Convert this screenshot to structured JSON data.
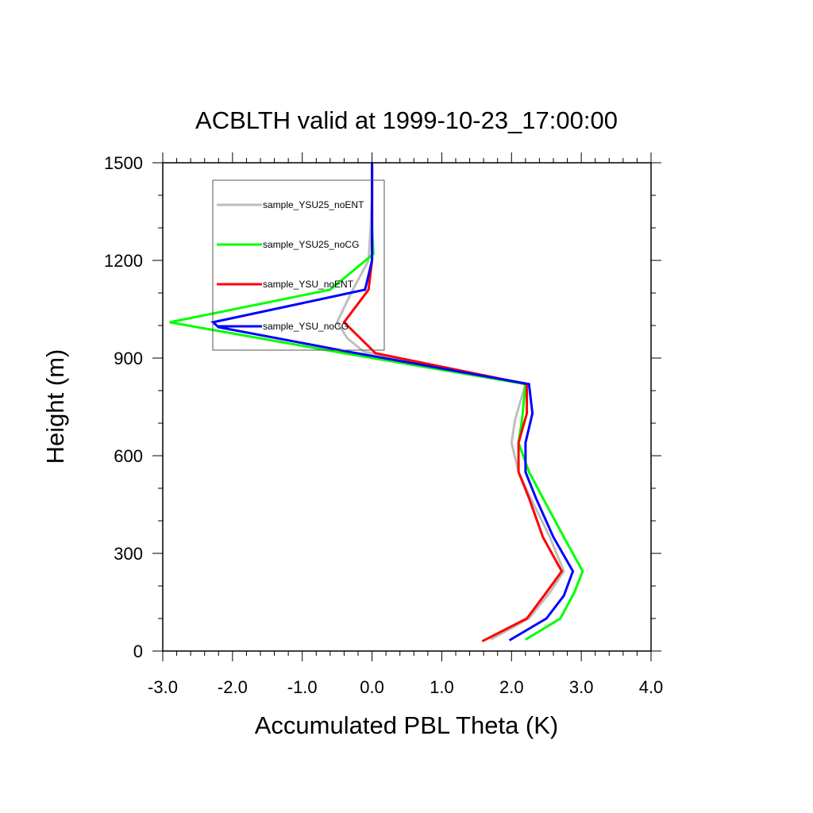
{
  "chart_data": {
    "type": "line",
    "title": "ACBLTH valid at 1999-10-23_17:00:00",
    "xlabel": "Accumulated PBL Theta (K)",
    "ylabel": "Height (m)",
    "xlim": [
      -3.0,
      4.0
    ],
    "ylim": [
      0,
      1500
    ],
    "xticks": [
      -3.0,
      -2.0,
      -1.0,
      0.0,
      1.0,
      2.0,
      3.0,
      4.0
    ],
    "xtick_labels": [
      "-3.0",
      "-2.0",
      "-1.0",
      "0.0",
      "1.0",
      "2.0",
      "3.0",
      "4.0"
    ],
    "yticks": [
      0,
      300,
      600,
      900,
      1200,
      1500
    ],
    "ytick_labels": [
      "0",
      "300",
      "600",
      "900",
      "1200",
      "1500"
    ],
    "grid": false,
    "legend_position": "top-left",
    "series": [
      {
        "name": "sample_YSU25_noENT",
        "color": "#bebebe",
        "points": [
          [
            1.7,
            35
          ],
          [
            2.25,
            100
          ],
          [
            2.55,
            180
          ],
          [
            2.75,
            245
          ],
          [
            2.55,
            350
          ],
          [
            2.25,
            480
          ],
          [
            2.1,
            550
          ],
          [
            2.0,
            640
          ],
          [
            2.05,
            710
          ],
          [
            2.2,
            820
          ],
          [
            -0.12,
            920
          ],
          [
            -0.35,
            960
          ],
          [
            -0.5,
            1010
          ],
          [
            -0.3,
            1100
          ],
          [
            -0.05,
            1200
          ],
          [
            -0.02,
            1300
          ],
          [
            0.0,
            1400
          ],
          [
            0.0,
            1500
          ]
        ]
      },
      {
        "name": "sample_YSU25_noCG",
        "color": "#00ff00",
        "points": [
          [
            2.2,
            35
          ],
          [
            2.7,
            100
          ],
          [
            2.9,
            180
          ],
          [
            3.02,
            245
          ],
          [
            2.75,
            350
          ],
          [
            2.45,
            470
          ],
          [
            2.25,
            550
          ],
          [
            2.1,
            640
          ],
          [
            2.15,
            710
          ],
          [
            2.2,
            820
          ],
          [
            -0.4,
            915
          ],
          [
            -2.9,
            1010
          ],
          [
            -0.6,
            1110
          ],
          [
            0.02,
            1220
          ],
          [
            0.0,
            1300
          ],
          [
            0.0,
            1400
          ],
          [
            0.0,
            1500
          ]
        ]
      },
      {
        "name": "sample_YSU_noENT",
        "color": "#ff0000",
        "points": [
          [
            1.58,
            30
          ],
          [
            2.22,
            100
          ],
          [
            2.5,
            180
          ],
          [
            2.72,
            245
          ],
          [
            2.45,
            350
          ],
          [
            2.25,
            470
          ],
          [
            2.1,
            550
          ],
          [
            2.1,
            640
          ],
          [
            2.22,
            730
          ],
          [
            2.22,
            820
          ],
          [
            0.05,
            915
          ],
          [
            -0.4,
            1010
          ],
          [
            -0.05,
            1110
          ],
          [
            0.0,
            1200
          ],
          [
            0.0,
            1300
          ],
          [
            0.0,
            1400
          ],
          [
            0.0,
            1500
          ]
        ]
      },
      {
        "name": "sample_YSU_noCG",
        "color": "#0000ff",
        "points": [
          [
            1.97,
            33
          ],
          [
            2.5,
            100
          ],
          [
            2.75,
            170
          ],
          [
            2.88,
            245
          ],
          [
            2.6,
            350
          ],
          [
            2.35,
            470
          ],
          [
            2.2,
            550
          ],
          [
            2.2,
            640
          ],
          [
            2.3,
            730
          ],
          [
            2.25,
            820
          ],
          [
            -0.35,
            920
          ],
          [
            -2.2,
            995
          ],
          [
            -2.28,
            1010
          ],
          [
            -0.1,
            1110
          ],
          [
            0.0,
            1200
          ],
          [
            0.0,
            1300
          ],
          [
            0.0,
            1400
          ],
          [
            0.0,
            1500
          ]
        ]
      }
    ]
  }
}
